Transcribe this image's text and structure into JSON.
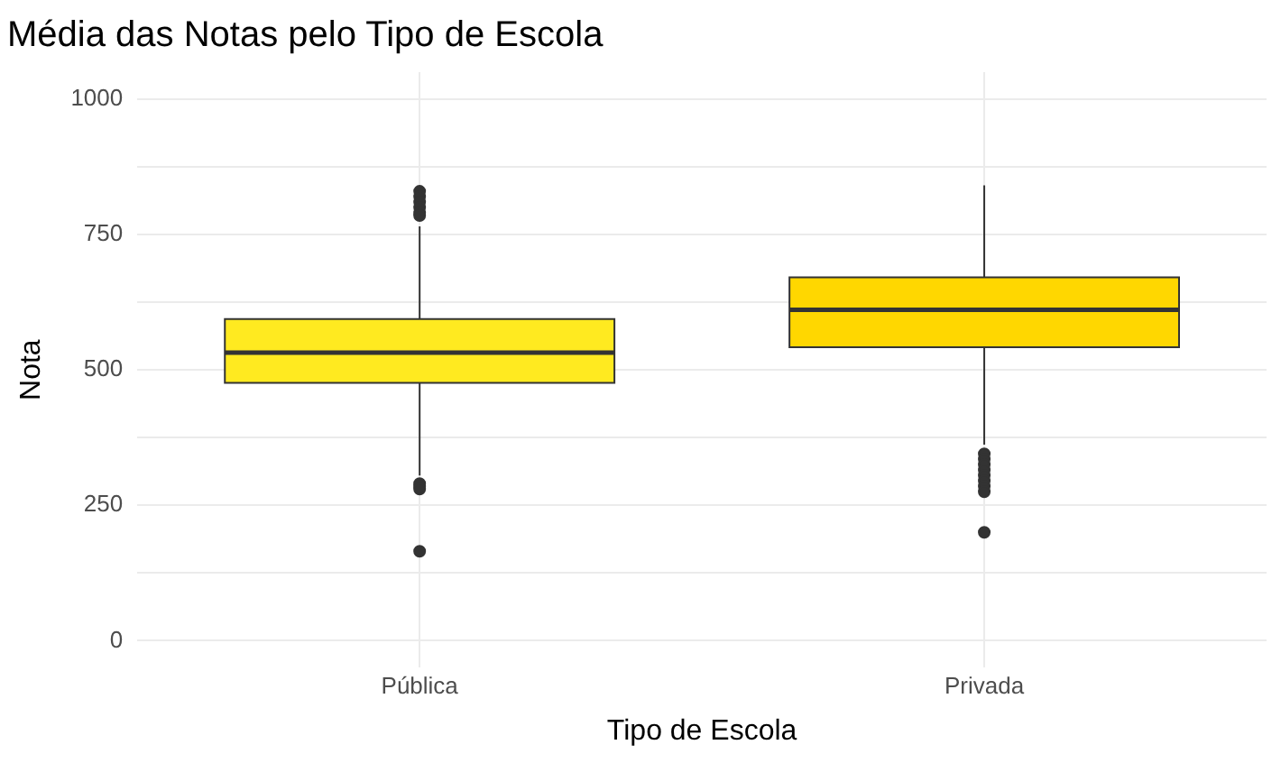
{
  "chart_data": {
    "type": "box",
    "title": "Média das Notas pelo Tipo de Escola",
    "xlabel": "Tipo de Escola",
    "ylabel": "Nota",
    "categories": [
      "Pública",
      "Privada"
    ],
    "series": [
      {
        "colors": [
          "#ffea20",
          "#ffd700"
        ],
        "boxes": [
          {
            "low": 305,
            "q1": 476,
            "median": 532,
            "q3": 594,
            "high": 765,
            "outliers": [
              830,
              820,
              810,
              800,
              790,
              785,
              290,
              285,
              280,
              165
            ]
          },
          {
            "low": 362,
            "q1": 542,
            "median": 611,
            "q3": 671,
            "high": 841,
            "outliers": [
              345,
              335,
              325,
              315,
              305,
              295,
              285,
              275,
              200
            ]
          }
        ]
      }
    ],
    "ylim": [
      -50,
      1050
    ],
    "yticks": [
      0,
      {
        "value": 125,
        "label": null
      },
      250,
      {
        "value": 375,
        "label": null
      },
      500,
      {
        "value": 625,
        "label": null
      },
      750,
      {
        "value": 875,
        "label": null
      },
      1000
    ],
    "grid": true,
    "legend": false
  }
}
